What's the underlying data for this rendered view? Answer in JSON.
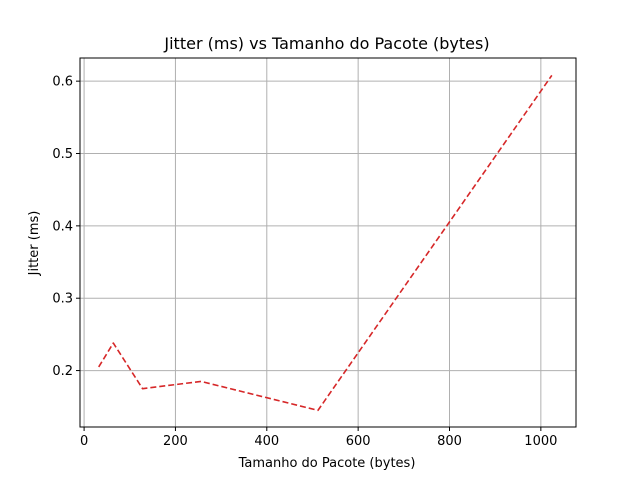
{
  "chart_data": {
    "type": "line",
    "title": "Jitter (ms) vs Tamanho do Pacote (bytes)",
    "xlabel": "Tamanho do Pacote (bytes)",
    "ylabel": "Jitter (ms)",
    "xlim": [
      -8.96,
      1076.96
    ],
    "ylim": [
      0.122,
      0.632
    ],
    "xticks": [
      0,
      200,
      400,
      600,
      800,
      1000
    ],
    "xtick_labels": [
      "0",
      "200",
      "400",
      "600",
      "800",
      "1000"
    ],
    "yticks": [
      0.2,
      0.3,
      0.4,
      0.5,
      0.6
    ],
    "ytick_labels": [
      "0.2",
      "0.3",
      "0.4",
      "0.5",
      "0.6"
    ],
    "grid": true,
    "series": [
      {
        "x": [
          32,
          64,
          128,
          256,
          512,
          1024
        ],
        "y": [
          0.205,
          0.238,
          0.175,
          0.185,
          0.145,
          0.608
        ],
        "color": "#d62728",
        "line_style": "dashed"
      }
    ]
  }
}
